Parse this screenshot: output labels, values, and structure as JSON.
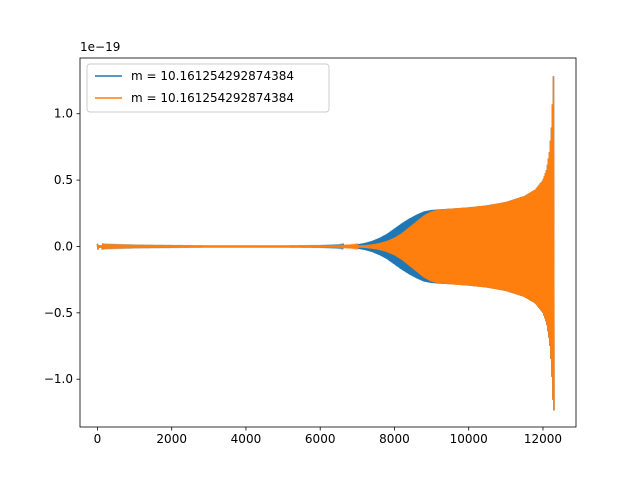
{
  "chart_data": {
    "type": "line",
    "title": "",
    "xlabel": "",
    "ylabel": "",
    "y_offset_label": "1e−19",
    "xlim": [
      -470,
      12890
    ],
    "ylim": [
      -1.36,
      1.42
    ],
    "x_ticks": [
      0,
      2000,
      4000,
      6000,
      8000,
      10000,
      12000
    ],
    "x_tick_labels": [
      "0",
      "2000",
      "4000",
      "6000",
      "8000",
      "10000",
      "12000"
    ],
    "y_ticks": [
      -1.0,
      -0.5,
      0.0,
      0.5,
      1.0
    ],
    "y_tick_labels": [
      "−1.0",
      "−0.5",
      "0.0",
      "0.5",
      "1.0"
    ],
    "grid": false,
    "legend_position": "upper-left",
    "series": [
      {
        "name": "m = 10.161254292874384",
        "color": "#1f77b4",
        "envelope": {
          "x": [
            0,
            20,
            60,
            200,
            1000,
            2000,
            3000,
            4000,
            5000,
            6000,
            6500,
            6800,
            7000,
            7200,
            7400,
            7600,
            7800,
            8000,
            8200,
            8400,
            8600,
            8800,
            9000,
            9200,
            9500,
            10000,
            10500,
            11000,
            11500,
            11800,
            12000,
            12100,
            12180,
            12230,
            12260,
            12280,
            12300
          ],
          "y_max": [
            0.02,
            0.01,
            0.008,
            0.006,
            0.004,
            0.003,
            0.002,
            0.002,
            0.002,
            0.003,
            0.005,
            0.01,
            0.016,
            0.026,
            0.042,
            0.065,
            0.095,
            0.135,
            0.175,
            0.21,
            0.24,
            0.265,
            0.275,
            0.28,
            0.285,
            0.295,
            0.31,
            0.335,
            0.38,
            0.43,
            0.5,
            0.58,
            0.72,
            0.9,
            1.1,
            1.28,
            1.3
          ],
          "y_min": [
            -0.05,
            -0.01,
            -0.008,
            -0.006,
            -0.004,
            -0.003,
            -0.002,
            -0.002,
            -0.002,
            -0.003,
            -0.005,
            -0.01,
            -0.016,
            -0.026,
            -0.042,
            -0.065,
            -0.095,
            -0.135,
            -0.175,
            -0.21,
            -0.24,
            -0.265,
            -0.275,
            -0.28,
            -0.285,
            -0.295,
            -0.31,
            -0.335,
            -0.38,
            -0.43,
            -0.5,
            -0.58,
            -0.72,
            -0.9,
            -1.1,
            -1.22,
            -1.24
          ]
        }
      },
      {
        "name": "m = 10.161254292874384",
        "color": "#ff7f0e",
        "envelope": {
          "x": [
            0,
            20,
            60,
            200,
            1000,
            2000,
            3000,
            4000,
            5000,
            6000,
            6500,
            6800,
            7000,
            7200,
            7400,
            7600,
            7800,
            8000,
            8200,
            8400,
            8600,
            8800,
            9000,
            9200,
            9500,
            10000,
            10500,
            11000,
            11500,
            11800,
            12000,
            12100,
            12180,
            12230,
            12260,
            12280,
            12300
          ],
          "y_max": [
            0.02,
            0.01,
            0.008,
            0.006,
            0.004,
            0.003,
            0.002,
            0.002,
            0.002,
            0.002,
            0.003,
            0.005,
            0.007,
            0.01,
            0.016,
            0.026,
            0.042,
            0.066,
            0.1,
            0.145,
            0.19,
            0.235,
            0.265,
            0.278,
            0.285,
            0.295,
            0.31,
            0.335,
            0.38,
            0.43,
            0.5,
            0.58,
            0.72,
            0.9,
            1.1,
            1.28,
            1.3
          ],
          "y_min": [
            -0.05,
            -0.01,
            -0.008,
            -0.006,
            -0.004,
            -0.003,
            -0.002,
            -0.002,
            -0.002,
            -0.002,
            -0.003,
            -0.005,
            -0.007,
            -0.01,
            -0.016,
            -0.026,
            -0.042,
            -0.066,
            -0.1,
            -0.145,
            -0.19,
            -0.235,
            -0.265,
            -0.278,
            -0.285,
            -0.295,
            -0.31,
            -0.335,
            -0.38,
            -0.43,
            -0.5,
            -0.58,
            -0.72,
            -0.9,
            -1.1,
            -1.22,
            -1.24
          ]
        }
      }
    ]
  }
}
